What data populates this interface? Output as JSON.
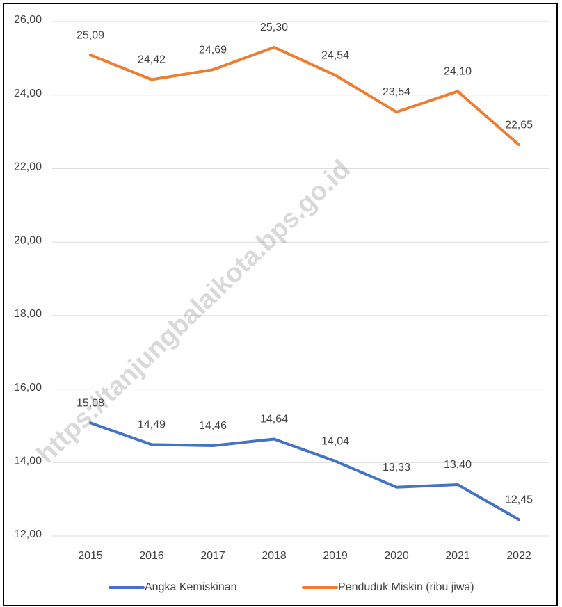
{
  "chart_data": {
    "type": "line",
    "categories": [
      "2015",
      "2016",
      "2017",
      "2018",
      "2019",
      "2020",
      "2021",
      "2022"
    ],
    "series": [
      {
        "name": "Angka Kemiskinan",
        "color": "#4472c4",
        "values": [
          15.08,
          14.49,
          14.46,
          14.64,
          14.04,
          13.33,
          13.4,
          12.45
        ],
        "value_labels": [
          "15,08",
          "14,49",
          "14,46",
          "14,64",
          "14,04",
          "13,33",
          "13,40",
          "12,45"
        ]
      },
      {
        "name": "Penduduk Miskin (ribu jiwa)",
        "color": "#ed7d31",
        "values": [
          25.09,
          24.42,
          24.69,
          25.3,
          24.54,
          23.54,
          24.1,
          22.65
        ],
        "value_labels": [
          "25,09",
          "24,42",
          "24,69",
          "25,30",
          "24,54",
          "23,54",
          "24,10",
          "22,65"
        ]
      }
    ],
    "ylim": [
      12,
      26
    ],
    "yticks": [
      {
        "value": 12,
        "label": "12,00"
      },
      {
        "value": 14,
        "label": "14,00"
      },
      {
        "value": 16,
        "label": "16,00"
      },
      {
        "value": 18,
        "label": "18,00"
      },
      {
        "value": 20,
        "label": "20,00"
      },
      {
        "value": 22,
        "label": "22,00"
      },
      {
        "value": 24,
        "label": "24,00"
      },
      {
        "value": 26,
        "label": "26,00"
      }
    ],
    "grid": true,
    "legend": "bottom",
    "watermark": "https://tanjungbalaikota.bps.go.id"
  }
}
